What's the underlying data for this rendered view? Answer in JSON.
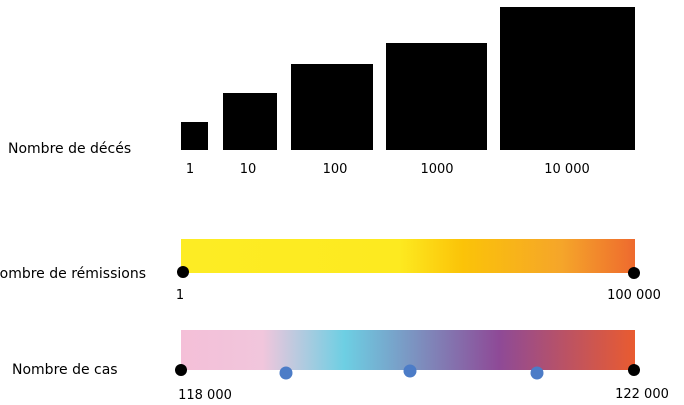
{
  "deaths": {
    "label": "Nombre de décés",
    "color": "#000000",
    "tiers": [
      "1",
      "10",
      "100",
      "1000",
      "10 000"
    ]
  },
  "remissions": {
    "label": "Nombre de rémissions",
    "min_label": "1",
    "max_label": "100 000",
    "gradient": [
      "#fdec24",
      "#fdea20",
      "#fbc308",
      "#f5a52a",
      "#ee6a2e"
    ]
  },
  "cases": {
    "label": "Nombre de cas",
    "min_label": "118 000",
    "max_label": "122 000",
    "gradient": [
      "#f4bfd8",
      "#f1c6dc",
      "#6dcfe3",
      "#8e4a97",
      "#e95b30"
    ],
    "marker_color": "#4c7cc7",
    "intermediate_markers": 3
  }
}
